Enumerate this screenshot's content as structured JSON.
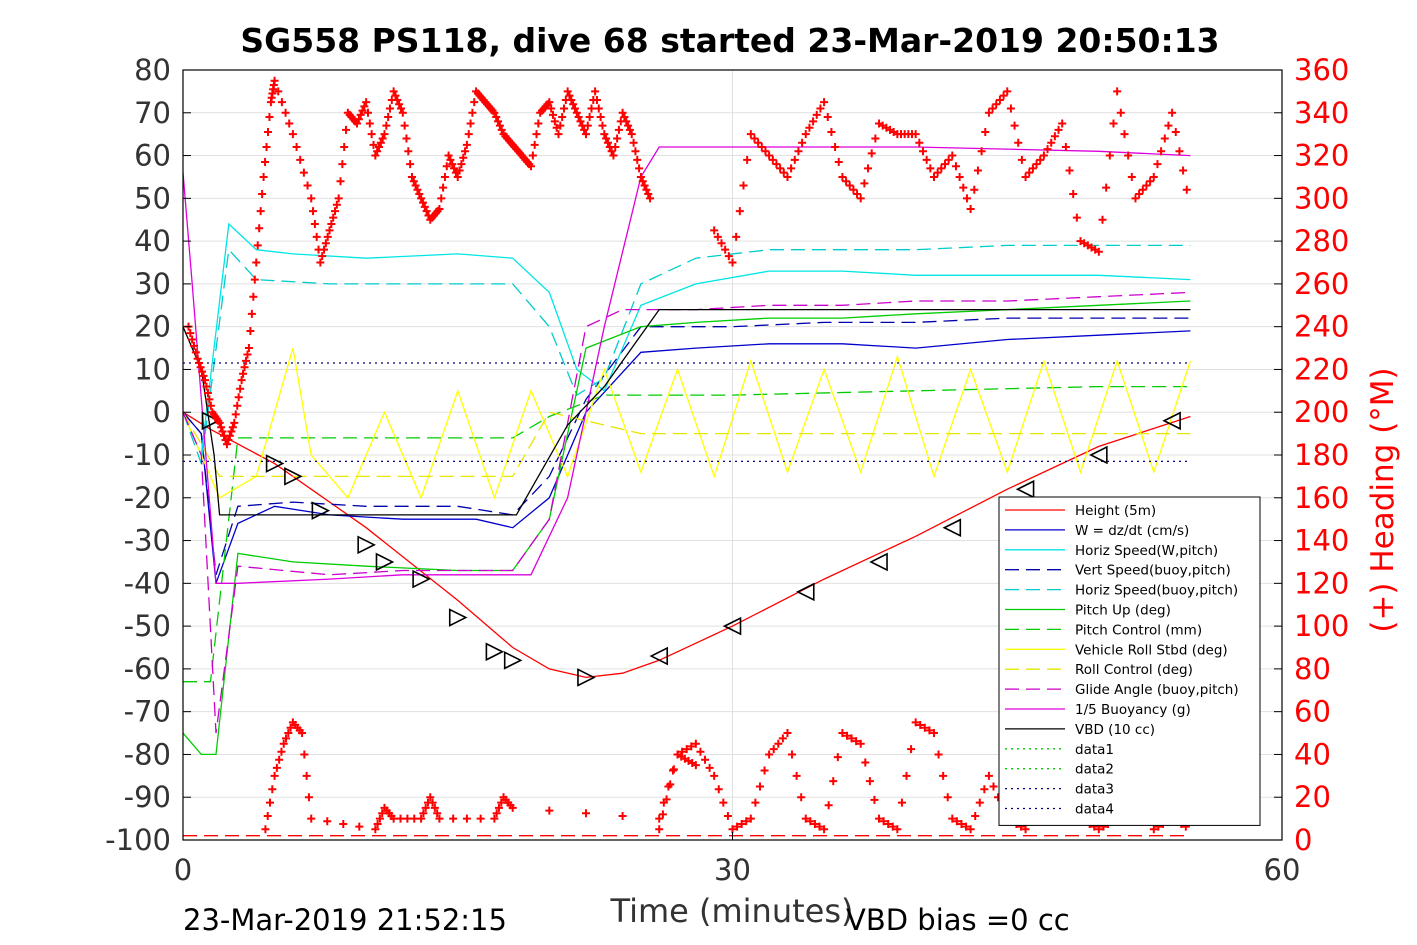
{
  "chart_data": {
    "type": "line",
    "title": "SG558 PS118, dive 68 started 23-Mar-2019 20:50:13",
    "xlabel": "Time (minutes)",
    "ylabel": "",
    "y2label": "(+) Heading (°M)",
    "footer_left": "23-Mar-2019 21:52:15",
    "footer_right": "VBD bias =0 cc",
    "xlim": [
      0,
      60
    ],
    "ylim": [
      -100,
      80
    ],
    "y2lim": [
      0,
      360
    ],
    "xticks": [
      "0",
      "30",
      "60"
    ],
    "yticks": [
      "80",
      "70",
      "60",
      "50",
      "40",
      "30",
      "20",
      "10",
      "0",
      "-10",
      "-20",
      "-30",
      "-40",
      "-50",
      "-60",
      "-70",
      "-80",
      "-90",
      "-100"
    ],
    "y2ticks": [
      "360",
      "340",
      "320",
      "300",
      "280",
      "260",
      "240",
      "220",
      "200",
      "180",
      "160",
      "140",
      "120",
      "100",
      "80",
      "60",
      "40",
      "20",
      "0"
    ],
    "grid": true,
    "legend_position": "bottom-right",
    "colors": {
      "height": "#ff0000",
      "w": "#0000cc",
      "horiz_speed": "#00e5e5",
      "vert_speed_buoy": "#0000aa",
      "horiz_speed_buoy": "#00cccc",
      "pitch": "#00cc00",
      "pitch_control": "#00cc00",
      "roll": "#ffff00",
      "roll_control": "#e6e600",
      "glide_angle": "#cc00cc",
      "buoyancy": "#dd00dd",
      "vbd": "#000000",
      "heading": "#ff0000",
      "data_lines": "#000080"
    },
    "legend": [
      {
        "label": "Height (5m)",
        "color": "#ff0000",
        "dash": "solid"
      },
      {
        "label": "W = dz/dt (cm/s)",
        "color": "#0000cc",
        "dash": "solid"
      },
      {
        "label": "Horiz Speed(W,pitch)",
        "color": "#00e5e5",
        "dash": "solid"
      },
      {
        "label": "Vert Speed(buoy,pitch)",
        "color": "#0000aa",
        "dash": "dashed"
      },
      {
        "label": "Horiz Speed(buoy,pitch)",
        "color": "#00cccc",
        "dash": "dashed"
      },
      {
        "label": "Pitch Up (deg)",
        "color": "#00cc00",
        "dash": "solid"
      },
      {
        "label": "Pitch Control (mm)",
        "color": "#00cc00",
        "dash": "dashed"
      },
      {
        "label": "Vehicle Roll Stbd (deg)",
        "color": "#ffff00",
        "dash": "solid"
      },
      {
        "label": "Roll Control (deg)",
        "color": "#e6e600",
        "dash": "dashed"
      },
      {
        "label": "Glide Angle (buoy,pitch)",
        "color": "#cc00cc",
        "dash": "dashed"
      },
      {
        "label": "1/5 Buoyancy (g)",
        "color": "#dd00dd",
        "dash": "solid"
      },
      {
        "label": "VBD (10 cc)",
        "color": "#000000",
        "dash": "solid"
      },
      {
        "label": "data1",
        "color": "#00cc00",
        "dash": "dotted"
      },
      {
        "label": "data2",
        "color": "#00cc00",
        "dash": "dotted"
      },
      {
        "label": "data3",
        "color": "#000080",
        "dash": "dotted"
      },
      {
        "label": "data4",
        "color": "#000080",
        "dash": "dotted"
      }
    ],
    "series": [
      {
        "key": "height",
        "color": "#ff0000",
        "dash": "solid",
        "x": [
          0,
          1.5,
          5,
          10,
          15,
          18,
          20,
          22,
          24,
          26,
          30,
          35,
          40,
          45,
          50,
          55
        ],
        "y": [
          0,
          -4,
          -12,
          -27,
          -44,
          -55,
          -60,
          -62,
          -61,
          -58,
          -50,
          -39,
          -29,
          -18,
          -8,
          -1
        ]
      },
      {
        "key": "height_markers",
        "color": "#000000",
        "dash": "none",
        "x": [
          1.5,
          5,
          6,
          7.5,
          10,
          11,
          13,
          15,
          17,
          18,
          22,
          26,
          30,
          34,
          38,
          42,
          46,
          50,
          54
        ],
        "y": [
          -2,
          -12,
          -15,
          -23,
          -31,
          -35,
          -39,
          -48,
          -56,
          -58,
          -62,
          -57,
          -50,
          -42,
          -35,
          -27,
          -18,
          -10,
          -2
        ]
      },
      {
        "key": "w",
        "color": "#0000cc",
        "dash": "solid",
        "x": [
          0,
          1,
          1.8,
          3,
          5,
          8,
          12,
          16,
          18,
          20,
          22,
          25,
          28,
          32,
          36,
          40,
          45,
          50,
          55
        ],
        "y": [
          0,
          -5,
          -40,
          -26,
          -22,
          -24,
          -25,
          -25,
          -27,
          -20,
          0,
          14,
          15,
          16,
          16,
          15,
          17,
          18,
          19
        ]
      },
      {
        "key": "vert_speed_buoy",
        "color": "#0000aa",
        "dash": "dashed",
        "x": [
          0,
          1,
          1.8,
          3,
          6,
          10,
          15,
          18,
          20,
          22,
          25,
          30,
          35,
          40,
          45,
          50,
          55
        ],
        "y": [
          0,
          -5,
          -38,
          -22,
          -21,
          -22,
          -22,
          -24,
          -15,
          3,
          20,
          20,
          21,
          21,
          22,
          22,
          22
        ]
      },
      {
        "key": "horiz_speed",
        "color": "#00e5e5",
        "dash": "solid",
        "x": [
          0,
          1,
          2.5,
          4,
          6,
          10,
          15,
          18,
          20,
          21.5,
          23,
          25,
          28,
          32,
          36,
          40,
          45,
          50,
          55
        ],
        "y": [
          0,
          -10,
          44,
          38,
          37,
          36,
          37,
          36,
          28,
          10,
          5,
          25,
          30,
          33,
          33,
          32,
          32,
          32,
          31
        ]
      },
      {
        "key": "horiz_speed_buoy",
        "color": "#00cccc",
        "dash": "dashed",
        "x": [
          0,
          1,
          2.5,
          4,
          8,
          12,
          16,
          18,
          20,
          21.5,
          23,
          25,
          28,
          32,
          36,
          40,
          45,
          50,
          55
        ],
        "y": [
          0,
          -12,
          38,
          31,
          30,
          30,
          30,
          30,
          20,
          4,
          8,
          30,
          36,
          38,
          38,
          38,
          39,
          39,
          39
        ]
      },
      {
        "key": "pitch",
        "color": "#00cc00",
        "dash": "solid",
        "x": [
          0,
          1,
          1.8,
          3,
          6,
          10,
          15,
          18,
          20,
          22,
          25,
          28,
          32,
          36,
          40,
          45,
          50,
          55
        ],
        "y": [
          -75,
          -80,
          -80,
          -33,
          -35,
          -36,
          -37,
          -37,
          -25,
          15,
          20,
          21,
          22,
          22,
          23,
          24,
          25,
          26
        ]
      },
      {
        "key": "pitch_control",
        "color": "#00cc00",
        "dash": "dashed",
        "x": [
          0,
          1.5,
          3,
          10,
          18,
          20,
          23,
          30,
          40,
          50,
          55
        ],
        "y": [
          -63,
          -63,
          -6,
          -6,
          -6,
          -1,
          4,
          4,
          5,
          6,
          6
        ]
      },
      {
        "key": "roll",
        "color": "#ffff00",
        "dash": "solid",
        "x": [
          0,
          2,
          4,
          6,
          7,
          9,
          11,
          13,
          15,
          17,
          19,
          21,
          23,
          25,
          27,
          29,
          31,
          33,
          35,
          37,
          39,
          41,
          43,
          45,
          47,
          49,
          51,
          53,
          55
        ],
        "y": [
          0,
          -20,
          -15,
          15,
          -10,
          -20,
          0,
          -20,
          5,
          -20,
          5,
          -15,
          10,
          -14,
          10,
          -15,
          12,
          -14,
          10,
          -14,
          13,
          -15,
          10,
          -14,
          12,
          -14,
          12,
          -14,
          12
        ]
      },
      {
        "key": "roll_control",
        "color": "#e6e600",
        "dash": "dashed",
        "x": [
          0,
          2,
          10,
          18,
          20,
          25,
          35,
          45,
          55
        ],
        "y": [
          0,
          -15,
          -15,
          -15,
          0,
          -5,
          -5,
          -5,
          -5
        ]
      },
      {
        "key": "glide_angle",
        "color": "#cc00cc",
        "dash": "dashed",
        "x": [
          0,
          1,
          1.8,
          3,
          8,
          12,
          16,
          18,
          20,
          22,
          24,
          28,
          32,
          36,
          40,
          45,
          50,
          55
        ],
        "y": [
          0,
          -10,
          -75,
          -36,
          -38,
          -37,
          -37,
          -37,
          -25,
          20,
          24,
          24,
          25,
          25,
          26,
          26,
          27,
          28
        ]
      },
      {
        "key": "buoyancy",
        "color": "#dd00dd",
        "dash": "solid",
        "x": [
          0,
          0.5,
          1.8,
          3,
          8,
          12,
          18,
          19,
          21,
          23,
          25,
          26,
          30,
          40,
          50,
          55
        ],
        "y": [
          56,
          30,
          -40,
          -40,
          -39,
          -38,
          -38,
          -38,
          -20,
          20,
          55,
          62,
          62,
          62,
          61,
          60
        ]
      },
      {
        "key": "vbd",
        "color": "#000000",
        "dash": "solid",
        "x": [
          0,
          1,
          1.7,
          2,
          10,
          18,
          18.2,
          21,
          23,
          25,
          26,
          30,
          40,
          50,
          55
        ],
        "y": [
          20,
          10,
          -10,
          -24,
          -24,
          -24,
          -24,
          -3,
          6,
          18,
          24,
          24,
          24,
          24,
          24
        ]
      },
      {
        "key": "data3",
        "color": "#000080",
        "dash": "dotted",
        "x": [
          0,
          55
        ],
        "y": [
          11.5,
          11.5
        ]
      },
      {
        "key": "data4",
        "color": "#000080",
        "dash": "dotted",
        "x": [
          0,
          55
        ],
        "y": [
          -11.5,
          -11.5
        ]
      },
      {
        "key": "zero_ref",
        "color": "#ff0000",
        "dash": "dashed",
        "x": [
          0,
          55
        ],
        "y": [
          -99,
          -99
        ]
      }
    ],
    "heading": {
      "color": "#ff0000",
      "x": [
        0.3,
        0.8,
        1.2,
        1.6,
        2,
        2.4,
        2.8,
        3.2,
        3.6,
        4,
        4.4,
        4.8,
        5,
        6,
        7,
        7.5,
        8,
        8.5,
        9,
        9.5,
        10,
        10.5,
        11,
        11.5,
        12,
        12.5,
        13,
        13.5,
        14,
        14.5,
        15,
        15.5,
        16,
        16.5,
        17,
        17.5,
        18,
        18.5,
        19,
        19.5,
        20,
        20.5,
        21,
        21.5,
        22,
        22.5,
        23,
        23.5,
        24,
        24.5,
        25,
        25.5,
        26,
        27,
        28,
        29,
        30,
        31,
        32,
        33,
        34,
        35,
        36,
        37,
        38,
        39,
        40,
        41,
        42,
        43,
        44,
        45,
        46,
        47,
        48,
        49,
        50,
        51,
        52,
        53,
        54,
        55
      ],
      "y": [
        240,
        225,
        215,
        200,
        195,
        185,
        195,
        215,
        230,
        270,
        310,
        345,
        355,
        330,
        300,
        270,
        285,
        300,
        340,
        335,
        345,
        320,
        330,
        350,
        340,
        310,
        300,
        290,
        295,
        320,
        310,
        325,
        350,
        345,
        340,
        330,
        325,
        320,
        315,
        340,
        345,
        330,
        350,
        340,
        330,
        350,
        330,
        320,
        340,
        330,
        310,
        300,
        5,
        40,
        35,
        285,
        270,
        330,
        320,
        310,
        330,
        345,
        310,
        300,
        335,
        330,
        330,
        310,
        320,
        295,
        340,
        350,
        310,
        320,
        335,
        280,
        275,
        350,
        300,
        310,
        340,
        295
      ]
    },
    "heading_low": {
      "x": [
        4.5,
        5,
        5.5,
        6,
        6.5,
        7,
        10.5,
        11,
        11.5,
        13,
        13.5,
        14,
        17,
        17.5,
        18,
        26,
        27,
        28,
        29,
        30,
        31,
        32,
        33,
        34,
        35,
        36,
        37,
        38,
        39,
        40,
        41,
        42,
        43,
        44,
        45,
        46,
        47,
        48,
        49,
        50,
        51,
        52,
        53,
        54,
        55
      ],
      "y": [
        5,
        30,
        45,
        55,
        50,
        10,
        5,
        15,
        10,
        10,
        20,
        10,
        10,
        20,
        15,
        10,
        40,
        45,
        30,
        5,
        10,
        40,
        50,
        10,
        5,
        50,
        45,
        10,
        5,
        55,
        50,
        10,
        5,
        30,
        10,
        5,
        40,
        35,
        10,
        5,
        10,
        20,
        5,
        10,
        5
      ]
    },
    "annotations": []
  }
}
